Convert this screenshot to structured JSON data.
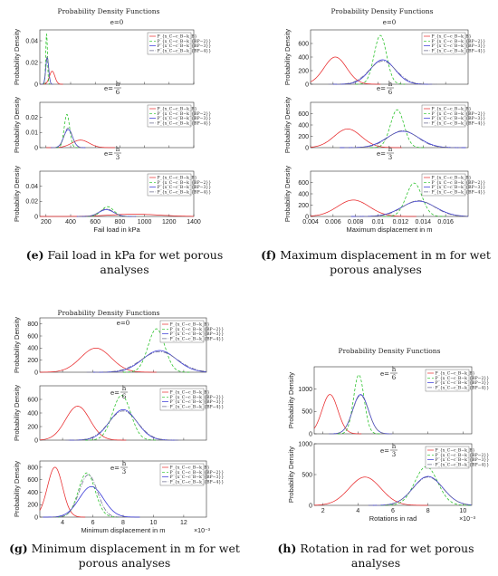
{
  "captions": [
    {
      "letter": "(e)",
      "text": "Fail load in kPa for wet porous analyses"
    },
    {
      "letter": "(f)",
      "text": "Maximum displacement in m for wet porous analyses"
    },
    {
      "letter": "(g)",
      "text": "Minimum displacement in m for wet porous analyses"
    },
    {
      "letter": "(h)",
      "text": "Rotation in rad for wet porous analyses"
    }
  ],
  "colors": {
    "series1": "#e8282a",
    "series2": "#22c022",
    "series3": "#2e2ed6",
    "series4": "#6f6f8f"
  },
  "chart_data": [
    {
      "id": "e",
      "type": "line",
      "title": "Probability Density Functions",
      "ylabel": "Probability Density",
      "xlabel": "Fail load in kPa",
      "xlim": [
        150,
        1400
      ],
      "xticks": [
        200,
        400,
        600,
        800,
        1000,
        1200,
        1400
      ],
      "legend": [
        "P_{x_C−c_B−k_B}",
        "P_{x_C−c_B−k_{BP−2}}",
        "P_{x_C−c_B−k_{BP−3}}",
        "P_{x_C−c_B−k_{BP−4}}"
      ],
      "panels": [
        {
          "subtitle": "e=0",
          "ylim": [
            0,
            0.05
          ],
          "yticks": [
            0,
            0.02,
            0.04
          ],
          "series": [
            {
              "mean": 250,
              "sd": 22,
              "peak": 0.012
            },
            {
              "mean": 205,
              "sd": 7,
              "peak": 0.046
            },
            {
              "mean": 210,
              "sd": 12,
              "peak": 0.024
            },
            {
              "mean": 210,
              "sd": 11,
              "peak": 0.026
            }
          ]
        },
        {
          "subtitle": "e=h/6",
          "ylim": [
            0,
            0.03
          ],
          "yticks": [
            0,
            0.01,
            0.02
          ],
          "series": [
            {
              "mean": 480,
              "sd": 70,
              "peak": 0.005
            },
            {
              "mean": 370,
              "sd": 22,
              "peak": 0.022
            },
            {
              "mean": 380,
              "sd": 35,
              "peak": 0.012
            },
            {
              "mean": 380,
              "sd": 33,
              "peak": 0.013
            }
          ]
        },
        {
          "subtitle": "e=h/3",
          "ylim": [
            0,
            0.06
          ],
          "yticks": [
            0,
            0.02,
            0.04
          ],
          "series": [
            {
              "mean": 920,
              "sd": 200,
              "peak": 0.003
            },
            {
              "mean": 700,
              "sd": 50,
              "peak": 0.013
            },
            {
              "mean": 690,
              "sd": 60,
              "peak": 0.009
            },
            {
              "mean": 690,
              "sd": 58,
              "peak": 0.01
            }
          ]
        }
      ]
    },
    {
      "id": "f",
      "type": "line",
      "title": "Probability Density Functions",
      "ylabel": "Probability Density",
      "xlabel": "Maximum displacement in m",
      "xlim": [
        0.004,
        0.018
      ],
      "xticks": [
        0.004,
        0.006,
        0.008,
        0.01,
        0.012,
        0.014,
        0.016
      ],
      "legend": [
        "P_{x_C−c_B−k_B}",
        "P_{x_C−c_B−k_{BP−2}}",
        "P_{x_C−c_B−k_{BP−3}}",
        "P_{x_C−c_B−k_{BP−4}}"
      ],
      "panels": [
        {
          "subtitle": "e=0",
          "ylim": [
            0,
            800
          ],
          "yticks": [
            0,
            200,
            400,
            600
          ],
          "series": [
            {
              "mean": 0.0062,
              "sd": 0.001,
              "peak": 400
            },
            {
              "mean": 0.0102,
              "sd": 0.00055,
              "peak": 720
            },
            {
              "mean": 0.0104,
              "sd": 0.0011,
              "peak": 360
            },
            {
              "mean": 0.0104,
              "sd": 0.0012,
              "peak": 340
            }
          ]
        },
        {
          "subtitle": "e=h/6",
          "ylim": [
            0,
            800
          ],
          "yticks": [
            0,
            200,
            400,
            600
          ],
          "series": [
            {
              "mean": 0.0073,
              "sd": 0.0012,
              "peak": 330
            },
            {
              "mean": 0.0117,
              "sd": 0.0006,
              "peak": 670
            },
            {
              "mean": 0.0122,
              "sd": 0.0014,
              "peak": 290
            },
            {
              "mean": 0.0122,
              "sd": 0.0013,
              "peak": 300
            }
          ]
        },
        {
          "subtitle": "e=h/3",
          "ylim": [
            0,
            800
          ],
          "yticks": [
            0,
            200,
            400,
            600
          ],
          "series": [
            {
              "mean": 0.0078,
              "sd": 0.0014,
              "peak": 290
            },
            {
              "mean": 0.0132,
              "sd": 0.0007,
              "peak": 590
            },
            {
              "mean": 0.0136,
              "sd": 0.0015,
              "peak": 270
            },
            {
              "mean": 0.0136,
              "sd": 0.0014,
              "peak": 280
            }
          ]
        }
      ]
    },
    {
      "id": "g",
      "type": "line",
      "title": "Probability Density Functions",
      "ylabel": "Probability Density",
      "xlabel": "Minimum displacement in m",
      "xscale_label": "×10⁻³",
      "xlim": [
        2.5,
        13.5
      ],
      "xticks": [
        4,
        6,
        8,
        10,
        12
      ],
      "legend": [
        "P_{x_C−c_B−k_B}",
        "P_{x_C−c_B−k_{BP−2}}",
        "P_{x_C−c_B−k_{BP−3}}",
        "P_{x_C−c_B−k_{BP−4}}"
      ],
      "panels": [
        {
          "subtitle": "e=0",
          "ylim": [
            0,
            900
          ],
          "yticks": [
            0,
            200,
            400,
            600,
            800
          ],
          "series": [
            {
              "mean": 6.2,
              "sd": 1.0,
              "peak": 400
            },
            {
              "mean": 10.2,
              "sd": 0.55,
              "peak": 720
            },
            {
              "mean": 10.4,
              "sd": 1.1,
              "peak": 360
            },
            {
              "mean": 10.4,
              "sd": 1.2,
              "peak": 340
            }
          ]
        },
        {
          "subtitle": "e=h/6",
          "ylim": [
            0,
            800
          ],
          "yticks": [
            0,
            200,
            400,
            600
          ],
          "series": [
            {
              "mean": 5.0,
              "sd": 0.8,
              "peak": 500
            },
            {
              "mean": 7.9,
              "sd": 0.6,
              "peak": 660
            },
            {
              "mean": 8.0,
              "sd": 0.9,
              "peak": 450
            },
            {
              "mean": 8.0,
              "sd": 0.95,
              "peak": 430
            }
          ]
        },
        {
          "subtitle": "e=h/3",
          "ylim": [
            0,
            900
          ],
          "yticks": [
            0,
            200,
            400,
            600,
            800
          ],
          "series": [
            {
              "mean": 3.5,
              "sd": 0.5,
              "peak": 800
            },
            {
              "mean": 5.6,
              "sd": 0.55,
              "peak": 710
            },
            {
              "mean": 5.9,
              "sd": 0.8,
              "peak": 490
            },
            {
              "mean": 5.7,
              "sd": 0.6,
              "peak": 680
            }
          ]
        }
      ]
    },
    {
      "id": "h",
      "type": "line",
      "title": "Probability Density Functions",
      "ylabel": "Probability Density",
      "xlabel": "Rotations in rad",
      "xscale_label": "×10⁻³",
      "xlim": [
        1.5,
        10.5
      ],
      "xticks": [
        2,
        4,
        6,
        8,
        10
      ],
      "legend": [
        "P_{x_C−c_B−k_B}",
        "P_{x_C−c_B−k_{BP−2}}",
        "P_{x_C−c_B−k_{BP−3}}",
        "P_{x_C−c_B−k_{BP−4}}"
      ],
      "panels": [
        {
          "subtitle": "e=h/6",
          "ylim": [
            0,
            1500
          ],
          "yticks": [
            0,
            500,
            1000
          ],
          "series": [
            {
              "mean": 2.4,
              "sd": 0.45,
              "peak": 880
            },
            {
              "mean": 4.05,
              "sd": 0.3,
              "peak": 1320
            },
            {
              "mean": 4.15,
              "sd": 0.45,
              "peak": 880
            },
            {
              "mean": 4.15,
              "sd": 0.45,
              "peak": 860
            }
          ]
        },
        {
          "subtitle": "e=h/3",
          "ylim": [
            0,
            1000
          ],
          "yticks": [
            0,
            500,
            1000
          ],
          "series": [
            {
              "mean": 4.4,
              "sd": 0.9,
              "peak": 460
            },
            {
              "mean": 7.9,
              "sd": 0.65,
              "peak": 630
            },
            {
              "mean": 8.0,
              "sd": 0.85,
              "peak": 470
            },
            {
              "mean": 8.0,
              "sd": 0.85,
              "peak": 460
            }
          ]
        }
      ]
    }
  ]
}
